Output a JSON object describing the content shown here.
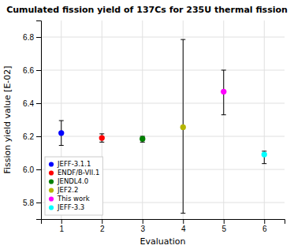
{
  "chart_data": {
    "type": "scatter",
    "title": "Cumulated fission yield of 137Cs for 235U thermal fission",
    "xlabel": "Evaluation",
    "ylabel": "Fission yield value [E-02]",
    "xlim": [
      0.5,
      6.5
    ],
    "ylim": [
      5.7,
      6.9
    ],
    "xticks": [
      1,
      2,
      3,
      4,
      5,
      6
    ],
    "yticks": [
      5.8,
      {
        "value": 6.0,
        "label": "6.0"
      },
      6.2,
      6.4,
      6.6,
      6.8
    ],
    "grid": true,
    "legend": "lower left",
    "series": [
      {
        "name": "JEFF-3.1.1",
        "color": "blue",
        "marker": "circle",
        "x": [
          1
        ],
        "values": [
          6.22
        ],
        "error_low": [
          0.075
        ],
        "error_high": [
          0.075
        ]
      },
      {
        "name": "ENDF/B-VII.1",
        "color": "red",
        "marker": "circle",
        "x": [
          2
        ],
        "values": [
          6.19
        ],
        "error_low": [
          0.025
        ],
        "error_high": [
          0.025
        ]
      },
      {
        "name": "JENDL4.0",
        "color": "green",
        "marker": "circle",
        "x": [
          3
        ],
        "values": [
          6.185
        ],
        "error_low": [
          0.02
        ],
        "error_high": [
          0.015
        ]
      },
      {
        "name": "JEF2.2",
        "color": "#b5b500",
        "marker": "circle",
        "x": [
          4
        ],
        "values": [
          6.255
        ],
        "error_low": [
          0.52
        ],
        "error_high": [
          0.53
        ]
      },
      {
        "name": "This work",
        "color": "magenta",
        "marker": "circle",
        "x": [
          5
        ],
        "values": [
          6.47
        ],
        "error_low": [
          0.14
        ],
        "error_high": [
          0.13
        ]
      },
      {
        "name": "JEFF-3.3",
        "color": "cyan",
        "marker": "circle",
        "x": [
          6
        ],
        "values": [
          6.09
        ],
        "error_low": [
          0.055
        ],
        "error_high": [
          0.02
        ]
      }
    ]
  }
}
